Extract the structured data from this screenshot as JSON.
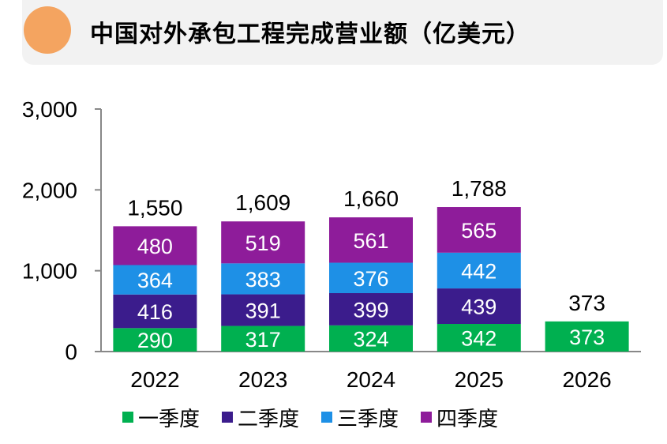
{
  "title": "中国对外承包工程完成营业额（亿美元）",
  "chart_data": {
    "type": "bar",
    "stacked": true,
    "categories": [
      "2022",
      "2023",
      "2024",
      "2025",
      "2026"
    ],
    "series": [
      {
        "name": "一季度",
        "color": "#00b050",
        "values": [
          290,
          317,
          324,
          342,
          373
        ]
      },
      {
        "name": "二季度",
        "color": "#3b1c8c",
        "values": [
          416,
          391,
          399,
          439,
          null
        ]
      },
      {
        "name": "三季度",
        "color": "#1e90e6",
        "values": [
          364,
          383,
          376,
          442,
          null
        ]
      },
      {
        "name": "四季度",
        "color": "#8e1c9a",
        "values": [
          480,
          519,
          561,
          565,
          null
        ]
      }
    ],
    "totals": [
      "1,550",
      "1,609",
      "1,660",
      "1,788",
      "373"
    ],
    "yticks": [
      "0",
      "1,000",
      "2,000",
      "3,000"
    ],
    "ylim": [
      0,
      3000
    ],
    "legend_position": "bottom",
    "grid": false
  }
}
